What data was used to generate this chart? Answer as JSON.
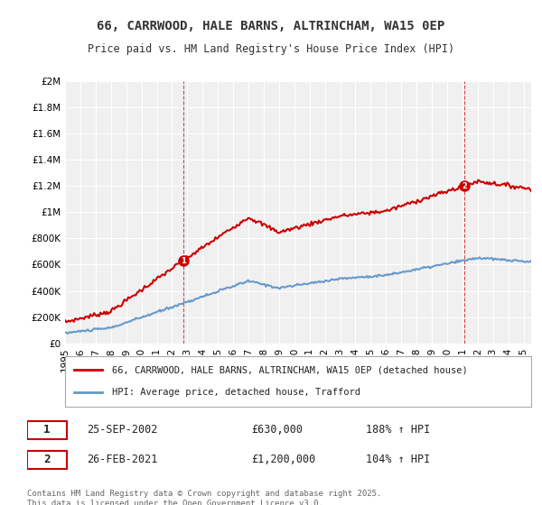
{
  "title_line1": "66, CARRWOOD, HALE BARNS, ALTRINCHAM, WA15 0EP",
  "title_line2": "Price paid vs. HM Land Registry's House Price Index (HPI)",
  "bg_color": "#ffffff",
  "plot_bg_color": "#f0f0f0",
  "red_color": "#cc0000",
  "blue_color": "#6699cc",
  "grid_color": "#ffffff",
  "yticks": [
    0,
    200000,
    400000,
    600000,
    800000,
    1000000,
    1200000,
    1400000,
    1600000,
    1800000,
    2000000
  ],
  "ytick_labels": [
    "£0",
    "£200K",
    "£400K",
    "£600K",
    "£800K",
    "£1M",
    "£1.2M",
    "£1.4M",
    "£1.6M",
    "£1.8M",
    "£2M"
  ],
  "xmin": 1995.0,
  "xmax": 2025.5,
  "ymin": 0,
  "ymax": 2000000,
  "sale1_x": 2002.73,
  "sale1_y": 630000,
  "sale2_x": 2021.15,
  "sale2_y": 1200000,
  "legend_line1": "66, CARRWOOD, HALE BARNS, ALTRINCHAM, WA15 0EP (detached house)",
  "legend_line2": "HPI: Average price, detached house, Trafford",
  "ann1_label": "1",
  "ann1_date": "25-SEP-2002",
  "ann1_price": "£630,000",
  "ann1_hpi": "188% ↑ HPI",
  "ann2_label": "2",
  "ann2_date": "26-FEB-2021",
  "ann2_price": "£1,200,000",
  "ann2_hpi": "104% ↑ HPI",
  "footer": "Contains HM Land Registry data © Crown copyright and database right 2025.\nThis data is licensed under the Open Government Licence v3.0.",
  "hpi_red_xstart": 1995.0,
  "hpi_blue_xstart": 1995.0
}
